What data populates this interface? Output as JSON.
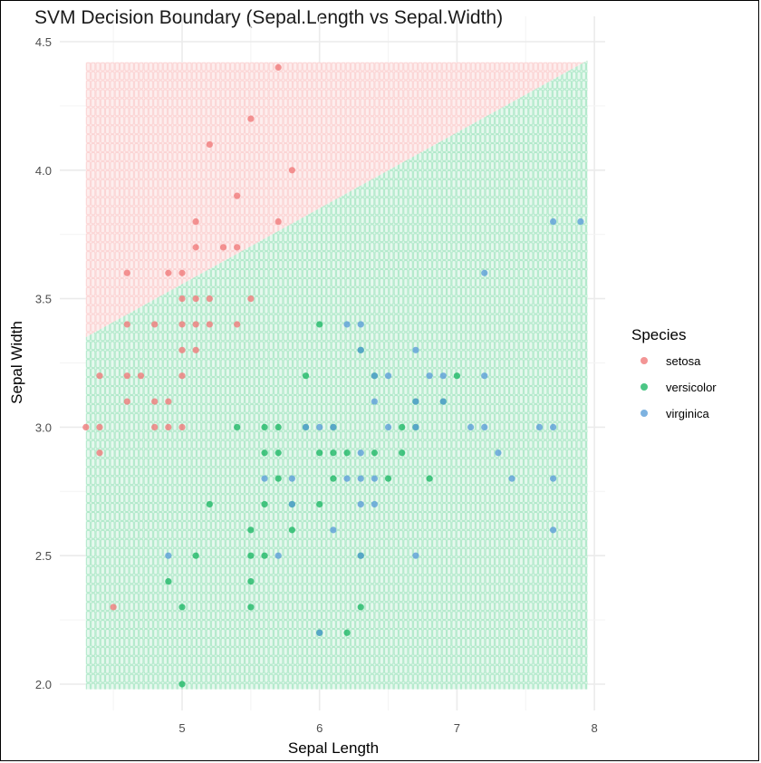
{
  "chart_data": {
    "type": "scatter",
    "title": "SVM Decision Boundary (Sepal.Length vs Sepal.Width)",
    "xlabel": "Sepal Length",
    "ylabel": "Sepal Width",
    "xlim": [
      4.18,
      8.07
    ],
    "ylim": [
      1.92,
      4.52
    ],
    "x_ticks": [
      5,
      6,
      7,
      8
    ],
    "x_tick_labels": [
      "5",
      "6",
      "7",
      "8"
    ],
    "y_ticks": [
      2.0,
      2.5,
      3.0,
      3.5,
      4.0,
      4.5
    ],
    "y_tick_labels": [
      "2.0",
      "2.5",
      "3.0",
      "3.5",
      "4.0",
      "4.5"
    ],
    "grid": true,
    "legend": {
      "title": "Species",
      "position": "right",
      "entries": [
        "setosa",
        "versicolor",
        "virginica"
      ]
    },
    "colors": {
      "setosa": "#f07a7a",
      "versicolor": "#1fb866",
      "virginica": "#5c9fd8",
      "setosa_region": "#fbd0d0",
      "versicolor_region": "#a8e6c4"
    },
    "decision_region": {
      "x_range": [
        4.3,
        7.95
      ],
      "y_range": [
        1.98,
        4.42
      ],
      "grid_step": 0.035,
      "boundary_line": {
        "intercept_at_x_4_3": 3.35,
        "slope": 0.295
      },
      "above": "setosa",
      "below": "versicolor"
    },
    "series": [
      {
        "name": "setosa",
        "points": [
          [
            5.7,
            4.4
          ],
          [
            5.5,
            4.2
          ],
          [
            5.2,
            4.1
          ],
          [
            5.8,
            4.0
          ],
          [
            5.4,
            3.9
          ],
          [
            5.1,
            3.8
          ],
          [
            5.7,
            3.8
          ],
          [
            5.1,
            3.7
          ],
          [
            5.3,
            3.7
          ],
          [
            5.4,
            3.7
          ],
          [
            4.6,
            3.6
          ],
          [
            4.9,
            3.6
          ],
          [
            5.0,
            3.6
          ],
          [
            5.0,
            3.5
          ],
          [
            5.1,
            3.5
          ],
          [
            5.2,
            3.5
          ],
          [
            5.5,
            3.5
          ],
          [
            4.6,
            3.4
          ],
          [
            4.8,
            3.4
          ],
          [
            5.0,
            3.4
          ],
          [
            5.1,
            3.4
          ],
          [
            5.2,
            3.4
          ],
          [
            5.4,
            3.4
          ],
          [
            5.0,
            3.3
          ],
          [
            5.1,
            3.3
          ],
          [
            4.4,
            3.2
          ],
          [
            4.6,
            3.2
          ],
          [
            4.7,
            3.2
          ],
          [
            5.0,
            3.2
          ],
          [
            4.6,
            3.1
          ],
          [
            4.8,
            3.1
          ],
          [
            4.9,
            3.1
          ],
          [
            4.3,
            3.0
          ],
          [
            4.4,
            3.0
          ],
          [
            4.8,
            3.0
          ],
          [
            4.9,
            3.0
          ],
          [
            5.0,
            3.0
          ],
          [
            4.4,
            2.9
          ],
          [
            4.5,
            2.3
          ]
        ]
      },
      {
        "name": "versicolor",
        "points": [
          [
            6.0,
            3.4
          ],
          [
            6.3,
            3.3
          ],
          [
            5.9,
            3.2
          ],
          [
            6.4,
            3.2
          ],
          [
            7.0,
            3.2
          ],
          [
            6.7,
            3.1
          ],
          [
            6.9,
            3.1
          ],
          [
            5.4,
            3.0
          ],
          [
            5.6,
            3.0
          ],
          [
            5.7,
            3.0
          ],
          [
            5.9,
            3.0
          ],
          [
            6.1,
            3.0
          ],
          [
            6.6,
            3.0
          ],
          [
            6.7,
            3.0
          ],
          [
            5.6,
            2.9
          ],
          [
            5.7,
            2.9
          ],
          [
            6.0,
            2.9
          ],
          [
            6.1,
            2.9
          ],
          [
            6.2,
            2.9
          ],
          [
            6.4,
            2.9
          ],
          [
            6.6,
            2.9
          ],
          [
            5.7,
            2.8
          ],
          [
            6.1,
            2.8
          ],
          [
            6.5,
            2.8
          ],
          [
            6.8,
            2.8
          ],
          [
            5.2,
            2.7
          ],
          [
            5.6,
            2.7
          ],
          [
            5.8,
            2.7
          ],
          [
            6.0,
            2.7
          ],
          [
            5.5,
            2.6
          ],
          [
            5.8,
            2.6
          ],
          [
            5.1,
            2.5
          ],
          [
            5.5,
            2.5
          ],
          [
            5.6,
            2.5
          ],
          [
            6.3,
            2.5
          ],
          [
            4.9,
            2.4
          ],
          [
            5.5,
            2.4
          ],
          [
            5.0,
            2.3
          ],
          [
            5.5,
            2.3
          ],
          [
            6.3,
            2.3
          ],
          [
            6.0,
            2.2
          ],
          [
            6.2,
            2.2
          ],
          [
            5.0,
            2.0
          ]
        ]
      },
      {
        "name": "virginica",
        "points": [
          [
            7.7,
            3.8
          ],
          [
            7.9,
            3.8
          ],
          [
            7.2,
            3.6
          ],
          [
            6.2,
            3.4
          ],
          [
            6.3,
            3.4
          ],
          [
            6.3,
            3.3
          ],
          [
            6.7,
            3.3
          ],
          [
            6.4,
            3.2
          ],
          [
            6.5,
            3.2
          ],
          [
            6.8,
            3.2
          ],
          [
            6.9,
            3.2
          ],
          [
            7.2,
            3.2
          ],
          [
            6.4,
            3.1
          ],
          [
            6.7,
            3.1
          ],
          [
            6.9,
            3.1
          ],
          [
            5.9,
            3.0
          ],
          [
            6.0,
            3.0
          ],
          [
            6.1,
            3.0
          ],
          [
            6.5,
            3.0
          ],
          [
            6.7,
            3.0
          ],
          [
            7.1,
            3.0
          ],
          [
            7.2,
            3.0
          ],
          [
            7.6,
            3.0
          ],
          [
            7.7,
            3.0
          ],
          [
            6.3,
            2.9
          ],
          [
            7.3,
            2.9
          ],
          [
            5.6,
            2.8
          ],
          [
            5.8,
            2.8
          ],
          [
            6.2,
            2.8
          ],
          [
            6.3,
            2.8
          ],
          [
            6.4,
            2.8
          ],
          [
            7.4,
            2.8
          ],
          [
            7.7,
            2.8
          ],
          [
            5.8,
            2.7
          ],
          [
            6.3,
            2.7
          ],
          [
            6.4,
            2.7
          ],
          [
            6.1,
            2.6
          ],
          [
            7.7,
            2.6
          ],
          [
            4.9,
            2.5
          ],
          [
            5.7,
            2.5
          ],
          [
            6.3,
            2.5
          ],
          [
            6.7,
            2.5
          ],
          [
            6.0,
            2.2
          ]
        ]
      }
    ]
  }
}
